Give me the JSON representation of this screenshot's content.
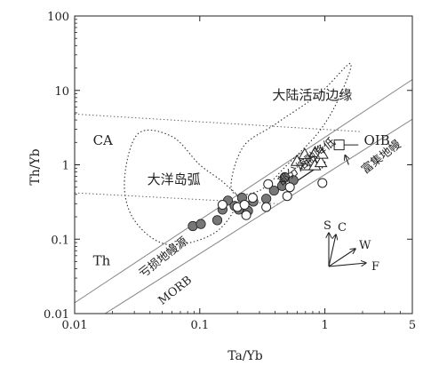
{
  "chart_data": {
    "type": "scatter",
    "title": "",
    "xlabel": "Ta/Yb",
    "ylabel": "Th/Yb",
    "x_scale": "log",
    "y_scale": "log",
    "xlim": [
      0.01,
      5
    ],
    "ylim": [
      0.01,
      100
    ],
    "x_ticks": [
      {
        "value": 0.01,
        "label": "0.01"
      },
      {
        "value": 0.1,
        "label": "0.1"
      },
      {
        "value": 1,
        "label": "1"
      },
      {
        "value": 5,
        "label": "5"
      }
    ],
    "y_ticks": [
      {
        "value": 0.01,
        "label": "0.01"
      },
      {
        "value": 0.1,
        "label": "0.1"
      },
      {
        "value": 1,
        "label": "1"
      },
      {
        "value": 10,
        "label": "10"
      },
      {
        "value": 100,
        "label": "100"
      }
    ],
    "grid": false,
    "legend": "none",
    "series": [
      {
        "marker": "filled-circle",
        "color": "#777777",
        "points": [
          [
            0.088,
            0.15
          ],
          [
            0.102,
            0.16
          ],
          [
            0.138,
            0.18
          ],
          [
            0.152,
            0.25
          ],
          [
            0.168,
            0.33
          ],
          [
            0.19,
            0.28
          ],
          [
            0.205,
            0.25
          ],
          [
            0.218,
            0.36
          ],
          [
            0.243,
            0.24
          ],
          [
            0.268,
            0.32
          ],
          [
            0.34,
            0.35
          ],
          [
            0.392,
            0.45
          ],
          [
            0.455,
            0.52
          ],
          [
            0.478,
            0.68
          ],
          [
            0.56,
            0.62
          ]
        ]
      },
      {
        "marker": "open-circle",
        "color": "#222222",
        "points": [
          [
            0.152,
            0.29
          ],
          [
            0.2,
            0.27
          ],
          [
            0.228,
            0.29
          ],
          [
            0.235,
            0.21
          ],
          [
            0.265,
            0.36
          ],
          [
            0.34,
            0.27
          ],
          [
            0.352,
            0.55
          ],
          [
            0.5,
            0.38
          ],
          [
            0.525,
            0.5
          ],
          [
            0.955,
            0.57
          ]
        ]
      },
      {
        "marker": "open-triangle",
        "color": "#222222",
        "points": [
          [
            0.6,
            1.12
          ],
          [
            0.69,
            1.38
          ],
          [
            0.71,
            0.98
          ],
          [
            0.8,
            1.13
          ],
          [
            0.835,
            1.47
          ],
          [
            0.83,
            0.98
          ],
          [
            0.93,
            1.08
          ],
          [
            0.95,
            1.4
          ]
        ]
      },
      {
        "marker": "open-square",
        "color": "#222222",
        "points": [
          [
            1.3,
            1.85
          ]
        ]
      }
    ],
    "annotations": [
      {
        "text": "大陆活动边缘",
        "x": 0.38,
        "y": 7.5
      },
      {
        "text": "大洋岛弧",
        "x": 0.038,
        "y": 0.55
      },
      {
        "text": "CA",
        "x": 0.014,
        "y": 1.85
      },
      {
        "text": "Th",
        "x": 0.014,
        "y": 0.045
      },
      {
        "text": "OIB",
        "x": 2.05,
        "y": 1.85
      },
      {
        "text": "部分熔融降低",
        "x": 0.45,
        "y": 0.52,
        "angle": -38
      },
      {
        "text": "富集地幔",
        "x": 2.1,
        "y": 0.75,
        "angle": -38
      },
      {
        "text": "亏损地幔源",
        "x": 0.035,
        "y": 0.03,
        "angle": -38
      },
      {
        "text": "MORB",
        "x": 0.05,
        "y": 0.013,
        "angle": -38
      }
    ],
    "vector_labels": [
      "S",
      "C",
      "W",
      "F"
    ]
  }
}
